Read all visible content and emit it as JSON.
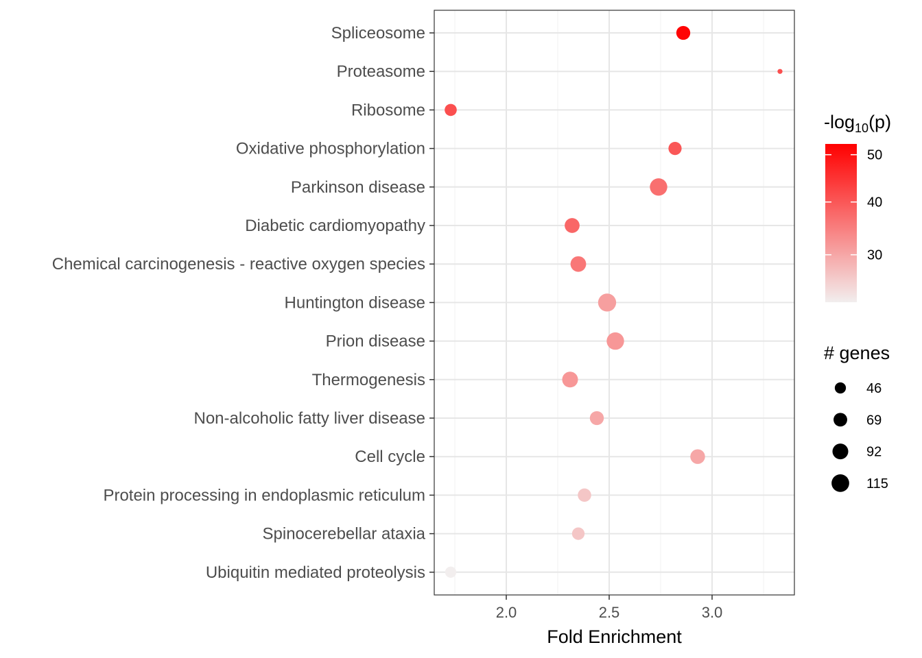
{
  "chart_data": {
    "type": "scatter",
    "xlabel": "Fold Enrichment",
    "xlim": [
      1.65,
      3.4
    ],
    "x_ticks": [
      "2.0",
      "2.5",
      "3.0"
    ],
    "x_tick_values": [
      2.0,
      2.5,
      3.0
    ],
    "grid": true,
    "legend_position": "right",
    "color_scale": {
      "title_prefix": "-log",
      "title_sub": "10",
      "title_suffix": "(p)",
      "ticks": [
        "30",
        "40",
        "50"
      ],
      "tick_values": [
        30,
        40,
        50
      ],
      "min": 21,
      "max": 51,
      "low_color": "#f2eeee",
      "high_color": "#ff0000"
    },
    "size_scale": {
      "title": "# genes",
      "labels": [
        "46",
        "69",
        "92",
        "115"
      ],
      "values": [
        46,
        69,
        92,
        115
      ]
    },
    "points": [
      {
        "term": "Spliceosome",
        "fold": 2.86,
        "log_p": 50.5,
        "genes": 72
      },
      {
        "term": "Proteasome",
        "fold": 3.33,
        "log_p": 41,
        "genes": 22
      },
      {
        "term": "Ribosome",
        "fold": 1.73,
        "log_p": 41,
        "genes": 54
      },
      {
        "term": "Oxidative phosphorylation",
        "fold": 2.82,
        "log_p": 40,
        "genes": 64
      },
      {
        "term": "Parkinson disease",
        "fold": 2.74,
        "log_p": 37,
        "genes": 112
      },
      {
        "term": "Diabetic cardiomyopathy",
        "fold": 2.32,
        "log_p": 38,
        "genes": 82
      },
      {
        "term": "Chemical carcinogenesis - reactive oxygen species",
        "fold": 2.35,
        "log_p": 36,
        "genes": 90
      },
      {
        "term": "Huntington disease",
        "fold": 2.49,
        "log_p": 31,
        "genes": 120
      },
      {
        "term": "Prion disease",
        "fold": 2.53,
        "log_p": 32,
        "genes": 112
      },
      {
        "term": "Thermogenesis",
        "fold": 2.31,
        "log_p": 32,
        "genes": 92
      },
      {
        "term": "Non-alcoholic fatty liver disease",
        "fold": 2.44,
        "log_p": 30,
        "genes": 72
      },
      {
        "term": "Cell cycle",
        "fold": 2.93,
        "log_p": 30,
        "genes": 80
      },
      {
        "term": "Protein processing in endoplasmic reticulum",
        "fold": 2.38,
        "log_p": 26,
        "genes": 66
      },
      {
        "term": "Spinocerebellar ataxia",
        "fold": 2.35,
        "log_p": 26,
        "genes": 58
      },
      {
        "term": "Ubiquitin mediated proteolysis",
        "fold": 1.73,
        "log_p": 21,
        "genes": 46
      }
    ]
  }
}
